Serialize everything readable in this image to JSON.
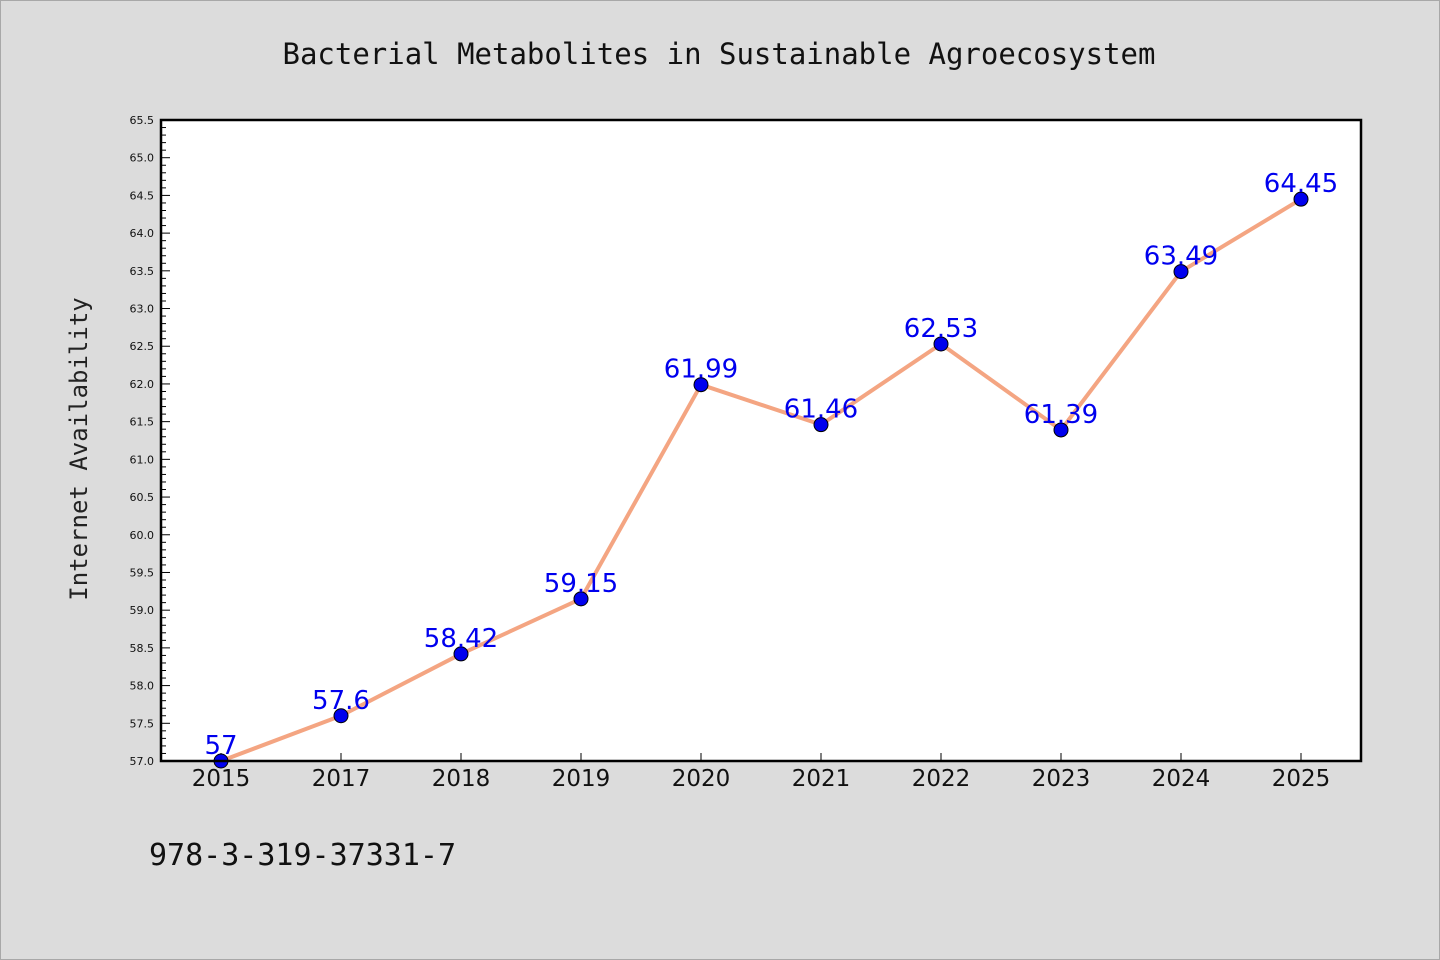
{
  "chart_data": {
    "type": "line",
    "title": "Bacterial Metabolites in Sustainable Agroecosystem",
    "xlabel": "",
    "ylabel": "Internet Availability",
    "categories": [
      "2015",
      "2017",
      "2018",
      "2019",
      "2020",
      "2021",
      "2022",
      "2023",
      "2024",
      "2025"
    ],
    "series": [
      {
        "values": [
          57,
          57.6,
          58.42,
          59.15,
          61.99,
          61.46,
          62.53,
          61.39,
          63.49,
          64.45
        ],
        "data_labels": [
          "57",
          "57.6",
          "58.42",
          "59.15",
          "61.99",
          "61.46",
          "62.53",
          "61.39",
          "63.49",
          "64.45"
        ],
        "line_color": "#f4a582",
        "marker_color": "#0000ee"
      }
    ],
    "ylim": [
      57.0,
      65.5
    ],
    "yticks": [
      "57.0",
      "57.5",
      "58.0",
      "58.5",
      "59.0",
      "59.5",
      "60.0",
      "60.5",
      "61.0",
      "61.5",
      "62.0",
      "62.5",
      "63.0",
      "63.5",
      "64.0",
      "64.5",
      "65.0",
      "65.5"
    ],
    "grid": false,
    "legend": "none",
    "label_color": "#0000ee"
  },
  "footnote": "978-3-319-37331-7"
}
